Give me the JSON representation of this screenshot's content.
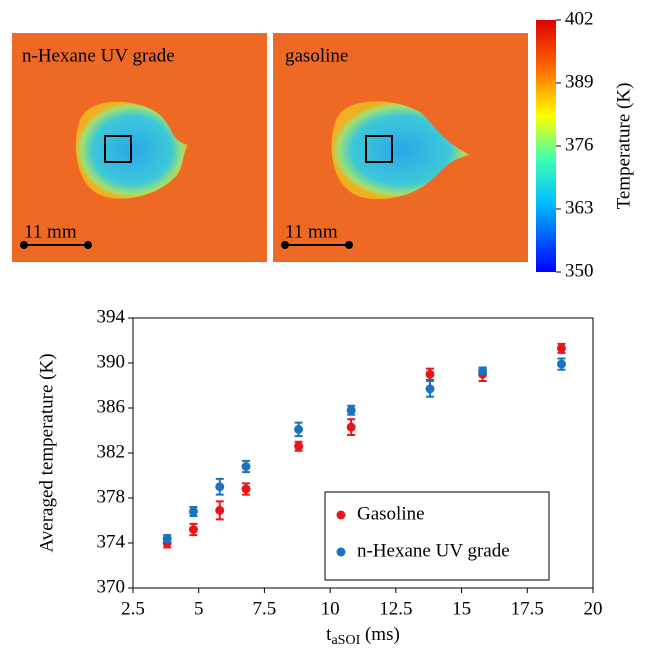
{
  "panels": [
    {
      "label": "n-Hexane UV grade",
      "scale": "11 mm"
    },
    {
      "label": "gasoline",
      "scale": "11 mm"
    }
  ],
  "colorbar": {
    "label": "Temperature (K)",
    "lim": [
      350,
      402
    ],
    "ticks": [
      350,
      363,
      376,
      389,
      402
    ]
  },
  "chart_data": {
    "type": "scatter",
    "ylabel": "Averaged temperature (K)",
    "xlabel": [
      "t",
      "aSOI",
      " (ms)"
    ],
    "x": [
      3.8,
      4.8,
      5.8,
      6.8,
      8.8,
      10.8,
      13.8,
      15.8,
      18.8
    ],
    "xlim": [
      2.5,
      20
    ],
    "xticks": [
      2.5,
      5,
      7.5,
      10,
      12.5,
      15,
      17.5,
      20
    ],
    "ylim": [
      370,
      394
    ],
    "yticks": [
      370,
      374,
      378,
      382,
      386,
      390,
      394
    ],
    "legend": "lower right",
    "series": [
      {
        "name": "Gasoline",
        "color": "#e8161b",
        "values": [
          374.0,
          375.2,
          376.9,
          378.8,
          382.6,
          384.3,
          389.0,
          389.0,
          391.3
        ],
        "errors": [
          0.4,
          0.5,
          0.8,
          0.5,
          0.4,
          0.7,
          0.5,
          0.6,
          0.4
        ]
      },
      {
        "name": "n-Hexane UV grade",
        "color": "#1a72c0",
        "values": [
          374.4,
          376.8,
          379.0,
          380.8,
          384.1,
          385.8,
          387.7,
          389.3,
          389.9
        ],
        "errors": [
          0.3,
          0.4,
          0.7,
          0.5,
          0.6,
          0.4,
          0.7,
          0.3,
          0.5
        ]
      }
    ]
  }
}
